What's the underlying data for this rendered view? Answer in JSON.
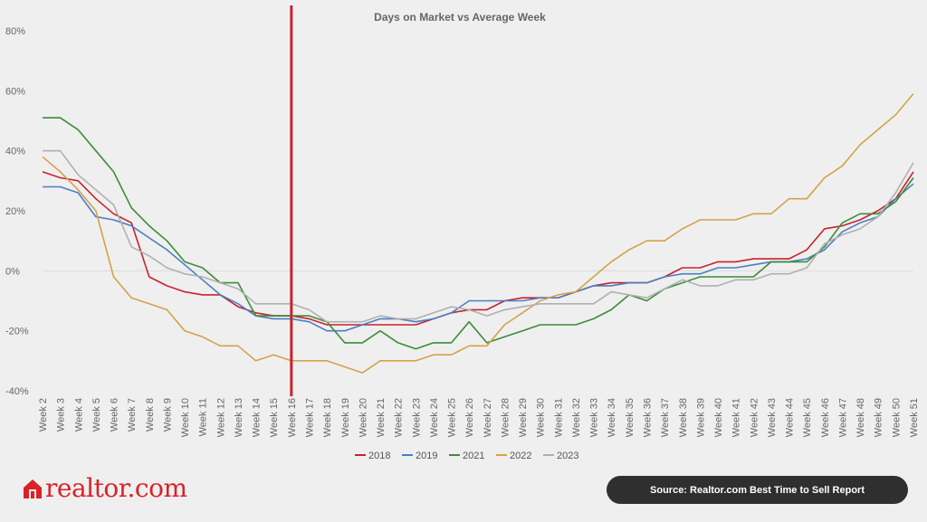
{
  "chart_data": {
    "type": "line",
    "title": "Days on Market vs Average Week",
    "x": [
      "Week 2",
      "Week 3",
      "Week 4",
      "Week 5",
      "Week 6",
      "Week 7",
      "Week 8",
      "Week 9",
      "Week 10",
      "Week 11",
      "Week 12",
      "Week 13",
      "Week 14",
      "Week 15",
      "Week 16",
      "Week 17",
      "Week 18",
      "Week 19",
      "Week 20",
      "Week 21",
      "Week 22",
      "Week 23",
      "Week 24",
      "Week 25",
      "Week 26",
      "Week 27",
      "Week 28",
      "Week 29",
      "Week 30",
      "Week 31",
      "Week 32",
      "Week 33",
      "Week 34",
      "Week 35",
      "Week 36",
      "Week 37",
      "Week 38",
      "Week 39",
      "Week 40",
      "Week 41",
      "Week 42",
      "Week 43",
      "Week 44",
      "Week 45",
      "Week 46",
      "Week 47",
      "Week 48",
      "Week 49",
      "Week 50",
      "Week 51"
    ],
    "ylim": [
      -40,
      80
    ],
    "yticks": [
      80,
      60,
      40,
      20,
      0,
      -20,
      -40
    ],
    "ytick_labels": [
      "80%",
      "60%",
      "40%",
      "20%",
      "0%",
      "-20%",
      "-40%"
    ],
    "series": [
      {
        "name": "2018",
        "color": "#c8232c",
        "values": [
          33,
          31,
          30,
          24,
          19,
          16,
          -2,
          -5,
          -7,
          -8,
          -8,
          -12,
          -14,
          -15,
          -15,
          -16,
          -18,
          -18,
          -18,
          -18,
          -18,
          -18,
          -16,
          -14,
          -13,
          -13,
          -10,
          -9,
          -9,
          -9,
          -7,
          -5,
          -4,
          -4,
          -4,
          -2,
          1,
          1,
          3,
          3,
          4,
          4,
          4,
          7,
          14,
          15,
          17,
          20,
          24,
          33
        ]
      },
      {
        "name": "2019",
        "color": "#4b7fc1",
        "values": [
          28,
          28,
          26,
          18,
          17,
          15,
          11,
          7,
          2,
          -3,
          -8,
          -11,
          -15,
          -16,
          -16,
          -17,
          -20,
          -20,
          -18,
          -16,
          -16,
          -17,
          -16,
          -14,
          -10,
          -10,
          -10,
          -10,
          -9,
          -9,
          -7,
          -5,
          -5,
          -4,
          -4,
          -2,
          -1,
          -1,
          1,
          1,
          2,
          3,
          3,
          4,
          7,
          13,
          16,
          18,
          24,
          29
        ]
      },
      {
        "name": "2021",
        "color": "#3d8c3a",
        "values": [
          51,
          51,
          47,
          40,
          33,
          21,
          15,
          10,
          3,
          1,
          -4,
          -4,
          -15,
          -15,
          -15,
          -15,
          -17,
          -24,
          -24,
          -20,
          -24,
          -26,
          -24,
          -24,
          -17,
          -24,
          -22,
          -20,
          -18,
          -18,
          -18,
          -16,
          -13,
          -8,
          -10,
          -6,
          -4,
          -2,
          -2,
          -2,
          -2,
          3,
          3,
          3,
          8,
          16,
          19,
          19,
          23,
          31
        ]
      },
      {
        "name": "2022",
        "color": "#d4a24a",
        "values": [
          38,
          33,
          27,
          20,
          -2,
          -9,
          -11,
          -13,
          -20,
          -22,
          -25,
          -25,
          -30,
          -28,
          -30,
          -30,
          -30,
          -32,
          -34,
          -30,
          -30,
          -30,
          -28,
          -28,
          -25,
          -25,
          -18,
          -14,
          -10,
          -8,
          -7,
          -2,
          3,
          7,
          10,
          10,
          14,
          17,
          17,
          17,
          19,
          19,
          24,
          24,
          31,
          35,
          42,
          47,
          52,
          59
        ]
      },
      {
        "name": "2023",
        "color": "#b0b0b0",
        "values": [
          40,
          40,
          32,
          27,
          22,
          8,
          5,
          1,
          -1,
          -2,
          -4,
          -6,
          -11,
          -11,
          -11,
          -13,
          -17,
          -17,
          -17,
          -15,
          -16,
          -16,
          -14,
          -12,
          -13,
          -15,
          -13,
          -12,
          -11,
          -11,
          -11,
          -11,
          -7,
          -8,
          -9,
          -6,
          -3,
          -5,
          -5,
          -3,
          -3,
          -1,
          -1,
          1,
          9,
          12,
          14,
          18,
          26,
          36
        ]
      }
    ],
    "marker_line": {
      "x": "Week 16",
      "color": "#c8232c"
    },
    "legend_position": "bottom-center",
    "grid": "zero-line only"
  },
  "brand": {
    "name": "realtor.com",
    "color": "#d92228"
  },
  "source": "Source: Realtor.com Best Time to Sell Report"
}
